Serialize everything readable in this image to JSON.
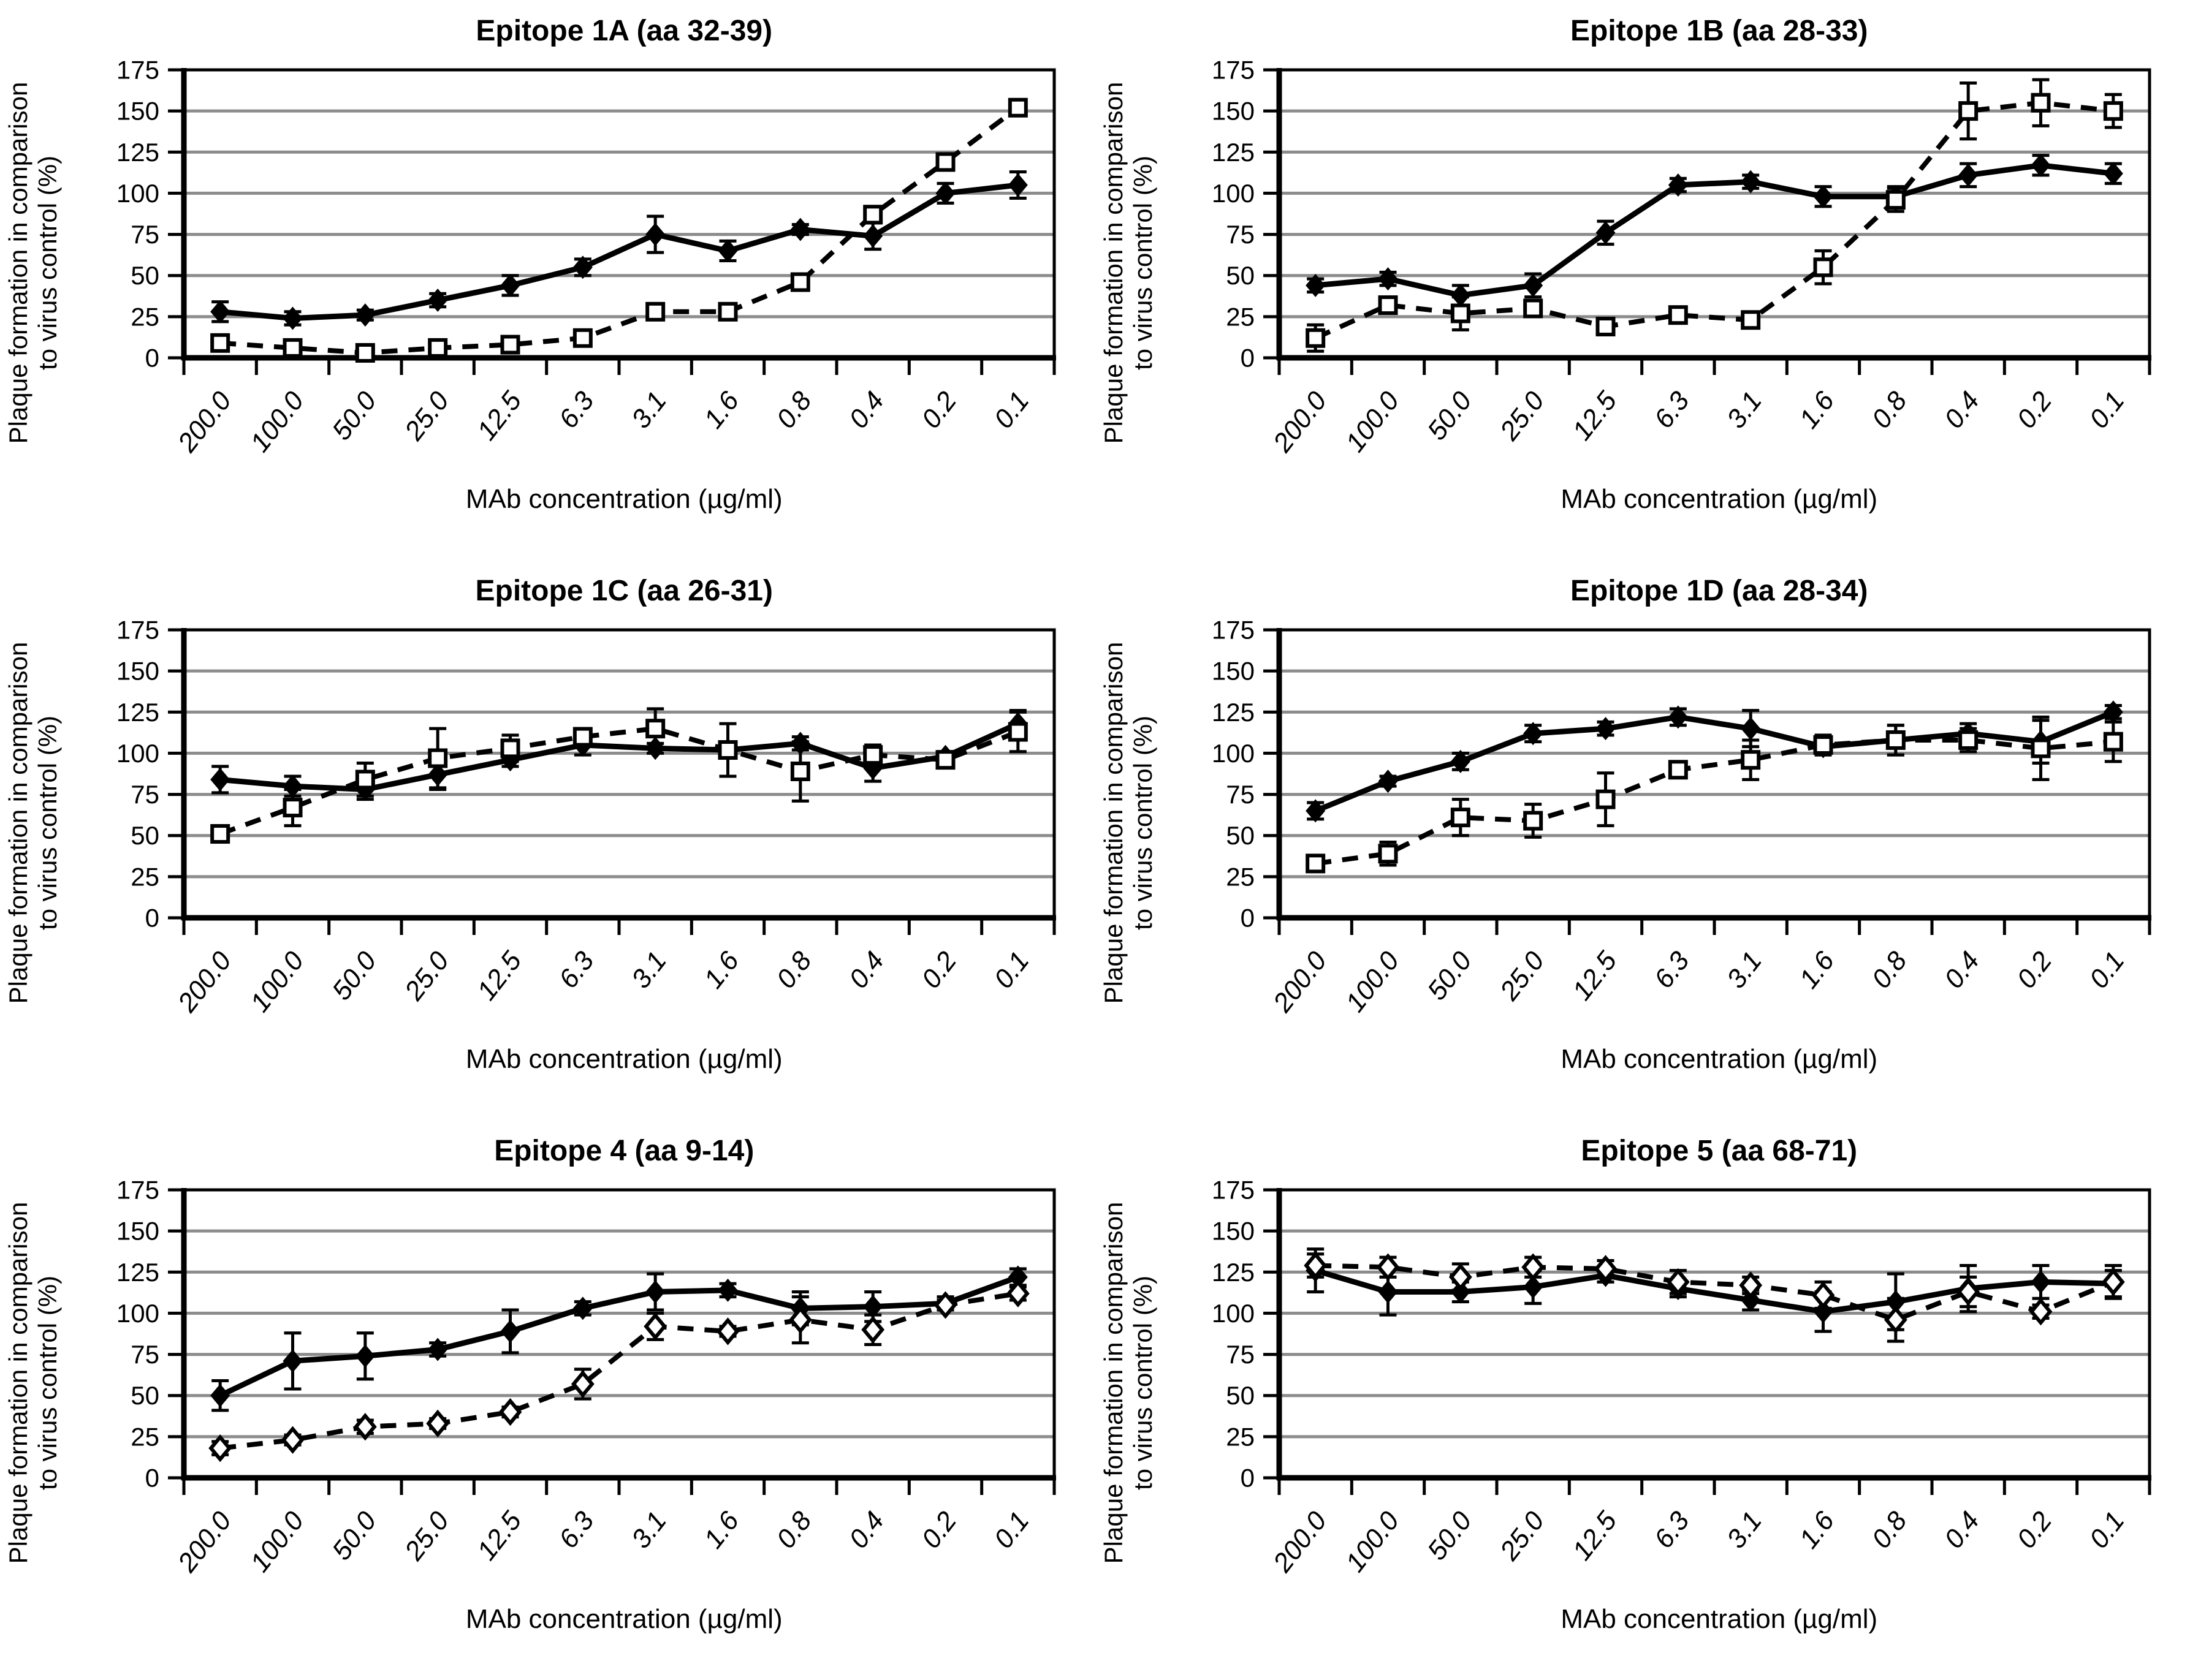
{
  "figure": {
    "background": "#ffffff",
    "grid_color": "#8c8c8c",
    "axis_color": "#000000",
    "series_color": "#000000"
  },
  "chart_data": [
    {
      "type": "line",
      "title": "Epitope 1A (aa 32-39)",
      "xlabel": "MAb concentration (µg/ml)",
      "ylabel": "Plaque formation in comparison to virus control (%)",
      "ylim": [
        0,
        175
      ],
      "ytick_step": 25,
      "grid": "horizontal",
      "legend": "none",
      "categories": [
        "200.0",
        "100.0",
        "50.0",
        "25.0",
        "12.5",
        "6.3",
        "3.1",
        "1.6",
        "0.8",
        "0.4",
        "0.2",
        "0.1"
      ],
      "series": [
        {
          "name": "solid line, filled diamonds",
          "line": "solid",
          "marker": "filled-diamond",
          "values": [
            28,
            24,
            26,
            35,
            44,
            55,
            75,
            65,
            78,
            74,
            100,
            105
          ],
          "errors": [
            6,
            4,
            3,
            4,
            6,
            5,
            11,
            6,
            3,
            8,
            6,
            8
          ]
        },
        {
          "name": "dashed line, open squares",
          "line": "dashed",
          "marker": "open-square",
          "values": [
            9,
            6,
            3,
            6,
            8,
            12,
            28,
            28,
            46,
            87,
            119,
            152
          ],
          "errors": [
            4,
            4,
            3,
            4,
            3,
            4,
            3,
            2,
            3,
            5,
            4,
            3
          ]
        }
      ]
    },
    {
      "type": "line",
      "title": "Epitope 1B (aa 28-33)",
      "xlabel": "MAb concentration (µg/ml)",
      "ylabel": "Plaque formation in comparison to virus control (%)",
      "ylim": [
        0,
        175
      ],
      "ytick_step": 25,
      "grid": "horizontal",
      "legend": "none",
      "categories": [
        "200.0",
        "100.0",
        "50.0",
        "25.0",
        "12.5",
        "6.3",
        "3.1",
        "1.6",
        "0.8",
        "0.4",
        "0.2",
        "0.1"
      ],
      "series": [
        {
          "name": "solid line, filled diamonds",
          "line": "solid",
          "marker": "filled-diamond",
          "values": [
            44,
            48,
            38,
            44,
            76,
            105,
            107,
            98,
            98,
            111,
            117,
            112
          ],
          "errors": [
            4,
            4,
            6,
            7,
            7,
            4,
            4,
            6,
            6,
            7,
            6,
            6
          ]
        },
        {
          "name": "dashed line, open squares",
          "line": "dashed",
          "marker": "open-square",
          "values": [
            12,
            32,
            27,
            30,
            19,
            26,
            23,
            55,
            96,
            150,
            155,
            150
          ],
          "errors": [
            8,
            4,
            10,
            3,
            5,
            3,
            3,
            10,
            7,
            17,
            14,
            10
          ]
        }
      ]
    },
    {
      "type": "line",
      "title": "Epitope 1C (aa 26-31)",
      "xlabel": "MAb concentration (µg/ml)",
      "ylabel": "Plaque formation in comparison to virus control (%)",
      "ylim": [
        0,
        175
      ],
      "ytick_step": 25,
      "grid": "horizontal",
      "legend": "none",
      "categories": [
        "200.0",
        "100.0",
        "50.0",
        "25.0",
        "12.5",
        "6.3",
        "3.1",
        "1.6",
        "0.8",
        "0.4",
        "0.2",
        "0.1"
      ],
      "series": [
        {
          "name": "solid line, filled diamonds",
          "line": "solid",
          "marker": "filled-diamond",
          "values": [
            84,
            80,
            78,
            87,
            96,
            105,
            103,
            102,
            106,
            91,
            98,
            118
          ],
          "errors": [
            8,
            6,
            6,
            9,
            4,
            6,
            3,
            4,
            4,
            8,
            3,
            8
          ]
        },
        {
          "name": "dashed line, open squares",
          "line": "dashed",
          "marker": "open-square",
          "values": [
            51,
            67,
            84,
            97,
            103,
            110,
            115,
            102,
            89,
            99,
            96,
            113
          ],
          "errors": [
            3,
            11,
            10,
            18,
            8,
            5,
            12,
            16,
            18,
            6,
            3,
            12
          ]
        }
      ]
    },
    {
      "type": "line",
      "title": "Epitope 1D (aa 28-34)",
      "xlabel": "MAb concentration (µg/ml)",
      "ylabel": "Plaque formation in comparison to virus control (%)",
      "ylim": [
        0,
        175
      ],
      "ytick_step": 25,
      "grid": "horizontal",
      "legend": "none",
      "categories": [
        "200.0",
        "100.0",
        "50.0",
        "25.0",
        "12.5",
        "6.3",
        "3.1",
        "1.6",
        "0.8",
        "0.4",
        "0.2",
        "0.1"
      ],
      "series": [
        {
          "name": "solid line, filled diamonds",
          "line": "solid",
          "marker": "filled-diamond",
          "values": [
            65,
            83,
            95,
            112,
            115,
            122,
            115,
            104,
            108,
            112,
            107,
            125
          ],
          "errors": [
            5,
            3,
            5,
            5,
            4,
            5,
            11,
            5,
            9,
            6,
            13,
            4
          ]
        },
        {
          "name": "dashed line, open squares",
          "line": "dashed",
          "marker": "open-square",
          "values": [
            33,
            39,
            61,
            59,
            72,
            90,
            96,
            105,
            108,
            108,
            103,
            107
          ],
          "errors": [
            3,
            7,
            11,
            10,
            16,
            4,
            12,
            6,
            9,
            7,
            19,
            12
          ]
        }
      ]
    },
    {
      "type": "line",
      "title": "Epitope 4 (aa 9-14)",
      "xlabel": "MAb concentration (µg/ml)",
      "ylabel": "Plaque formation in comparison to virus control (%)",
      "ylim": [
        0,
        175
      ],
      "ytick_step": 25,
      "grid": "horizontal",
      "legend": "none",
      "categories": [
        "200.0",
        "100.0",
        "50.0",
        "25.0",
        "12.5",
        "6.3",
        "3.1",
        "1.6",
        "0.8",
        "0.4",
        "0.2",
        "0.1"
      ],
      "series": [
        {
          "name": "solid line, filled diamonds",
          "line": "solid",
          "marker": "filled-diamond",
          "values": [
            50,
            71,
            74,
            78,
            89,
            103,
            113,
            114,
            103,
            104,
            106,
            122
          ],
          "errors": [
            9,
            17,
            14,
            4,
            13,
            4,
            11,
            4,
            10,
            9,
            4,
            5
          ]
        },
        {
          "name": "dashed line, open diamonds",
          "line": "dashed",
          "marker": "open-diamond",
          "values": [
            18,
            23,
            31,
            33,
            40,
            57,
            92,
            89,
            96,
            90,
            105,
            112
          ],
          "errors": [
            4,
            3,
            4,
            3,
            3,
            9,
            8,
            3,
            14,
            9,
            3,
            4
          ]
        }
      ]
    },
    {
      "type": "line",
      "title": "Epitope 5 (aa 68-71)",
      "xlabel": "MAb concentration (µg/ml)",
      "ylabel": "Plaque formation in comparison to virus control (%)",
      "ylim": [
        0,
        175
      ],
      "ytick_step": 25,
      "grid": "horizontal",
      "legend": "none",
      "categories": [
        "200.0",
        "100.0",
        "50.0",
        "25.0",
        "12.5",
        "6.3",
        "3.1",
        "1.6",
        "0.8",
        "0.4",
        "0.2",
        "0.1"
      ],
      "series": [
        {
          "name": "solid line, filled diamonds",
          "line": "solid",
          "marker": "filled-diamond",
          "values": [
            126,
            113,
            113,
            116,
            123,
            115,
            108,
            101,
            107,
            115,
            119,
            118
          ],
          "errors": [
            13,
            14,
            6,
            10,
            4,
            5,
            6,
            12,
            17,
            14,
            10,
            8
          ]
        },
        {
          "name": "dashed line, open diamonds",
          "line": "dashed",
          "marker": "open-diamond",
          "values": [
            129,
            128,
            122,
            128,
            127,
            119,
            117,
            111,
            96,
            113,
            101,
            119
          ],
          "errors": [
            7,
            6,
            8,
            6,
            5,
            7,
            5,
            8,
            13,
            9,
            4,
            10
          ]
        }
      ]
    }
  ]
}
